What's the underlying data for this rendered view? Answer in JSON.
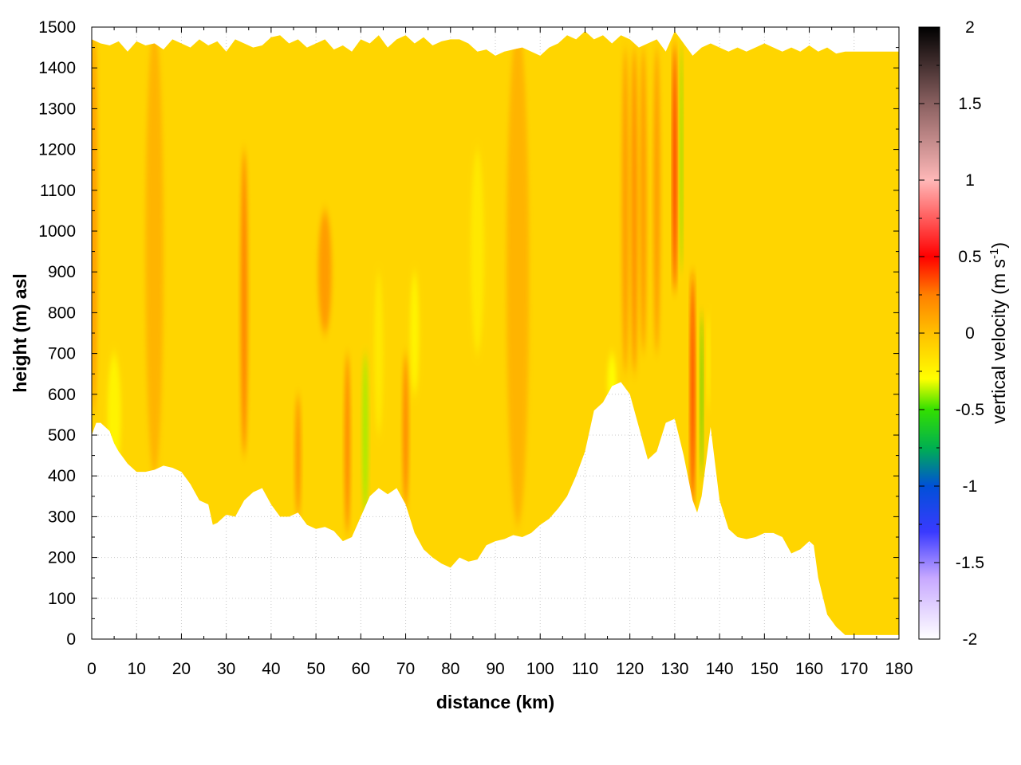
{
  "chart_data": {
    "type": "heatmap",
    "title": "",
    "xlabel": "distance (km)",
    "ylabel": "height (m) asl",
    "colorbar_label": "vertical velocity (m s",
    "colorbar_label_sup": "-1",
    "colorbar_label_end": ")",
    "xlim": [
      0,
      180
    ],
    "ylim": [
      0,
      1500
    ],
    "clim": [
      -2,
      2
    ],
    "grid": true,
    "x_ticks": [
      0,
      10,
      20,
      30,
      40,
      50,
      60,
      70,
      80,
      90,
      100,
      110,
      120,
      130,
      140,
      150,
      160,
      170,
      180
    ],
    "x_tick_labels": [
      "0",
      "10",
      "20",
      "30",
      "40",
      "50",
      "60",
      "70",
      "80",
      "90",
      "100",
      "110",
      "120",
      "130",
      "140",
      "150",
      "160",
      "170",
      "180"
    ],
    "y_ticks": [
      0,
      100,
      200,
      300,
      400,
      500,
      600,
      700,
      800,
      900,
      1000,
      1100,
      1200,
      1300,
      1400,
      1500
    ],
    "y_tick_labels": [
      "0",
      "100",
      "200",
      "300",
      "400",
      "500",
      "600",
      "700",
      "800",
      "900",
      "1000",
      "1100",
      "1200",
      "1300",
      "1400",
      "1500"
    ],
    "colorbar_ticks": [
      2,
      1.5,
      1,
      0.5,
      0,
      -0.5,
      -1,
      -1.5,
      -2
    ],
    "colorbar_tick_labels": [
      "2",
      "1.5",
      "1",
      "0.5",
      "0",
      "-0.5",
      "-1",
      "-1.5",
      "-2"
    ],
    "colormap": [
      {
        "v": -2.0,
        "color": "#ffffff"
      },
      {
        "v": -1.6,
        "color": "#c7a8ff"
      },
      {
        "v": -1.3,
        "color": "#3a3aff"
      },
      {
        "v": -1.0,
        "color": "#0050d8"
      },
      {
        "v": -0.75,
        "color": "#00b050"
      },
      {
        "v": -0.5,
        "color": "#33e000"
      },
      {
        "v": -0.3,
        "color": "#ffff00"
      },
      {
        "v": 0.0,
        "color": "#ffc000"
      },
      {
        "v": 0.25,
        "color": "#ff8000"
      },
      {
        "v": 0.5,
        "color": "#ff0000"
      },
      {
        "v": 1.0,
        "color": "#ffb8b8"
      },
      {
        "v": 1.5,
        "color": "#8a6060"
      },
      {
        "v": 2.0,
        "color": "#000000"
      }
    ],
    "terrain": {
      "x": [
        0,
        1,
        2,
        4,
        5,
        6,
        8,
        10,
        12,
        14,
        16,
        18,
        20,
        22,
        24,
        26,
        27,
        28,
        30,
        32,
        34,
        36,
        38,
        40,
        42,
        44,
        46,
        48,
        50,
        52,
        54,
        56,
        58,
        60,
        62,
        64,
        66,
        68,
        70,
        72,
        74,
        76,
        78,
        80,
        82,
        84,
        86,
        88,
        90,
        92,
        94,
        96,
        98,
        100,
        102,
        104,
        106,
        108,
        110,
        112,
        114,
        116,
        118,
        120,
        122,
        124,
        126,
        128,
        130,
        132,
        134,
        135,
        136,
        138,
        140,
        142,
        144,
        146,
        148,
        150,
        152,
        154,
        156,
        158,
        160,
        161,
        162,
        164,
        166,
        168,
        170,
        172,
        174,
        176,
        178,
        180
      ],
      "y": [
        500,
        530,
        530,
        510,
        480,
        460,
        430,
        410,
        410,
        415,
        425,
        420,
        410,
        380,
        340,
        330,
        280,
        285,
        305,
        300,
        340,
        360,
        370,
        330,
        300,
        300,
        310,
        280,
        270,
        275,
        265,
        240,
        250,
        300,
        350,
        370,
        355,
        370,
        330,
        260,
        220,
        200,
        185,
        175,
        200,
        190,
        195,
        230,
        240,
        245,
        255,
        250,
        260,
        280,
        295,
        320,
        350,
        400,
        460,
        560,
        580,
        620,
        630,
        600,
        520,
        440,
        460,
        530,
        540,
        450,
        340,
        310,
        350,
        520,
        340,
        270,
        250,
        245,
        250,
        260,
        260,
        250,
        210,
        220,
        240,
        230,
        150,
        60,
        30,
        10,
        10,
        10,
        10,
        10,
        10,
        10
      ]
    },
    "top_boundary": {
      "x": [
        0,
        2,
        4,
        6,
        8,
        10,
        12,
        14,
        16,
        18,
        20,
        22,
        24,
        26,
        28,
        30,
        32,
        34,
        36,
        38,
        40,
        42,
        44,
        46,
        48,
        50,
        52,
        54,
        56,
        58,
        60,
        62,
        64,
        66,
        68,
        70,
        72,
        74,
        76,
        78,
        80,
        82,
        84,
        86,
        88,
        90,
        92,
        94,
        96,
        98,
        100,
        102,
        104,
        106,
        108,
        110,
        112,
        114,
        116,
        118,
        120,
        122,
        124,
        126,
        128,
        130,
        132,
        134,
        136,
        138,
        140,
        142,
        144,
        146,
        148,
        150,
        152,
        154,
        156,
        158,
        160,
        162,
        164,
        166,
        168,
        170,
        172,
        174,
        176,
        178,
        180
      ],
      "y": [
        1470,
        1460,
        1455,
        1465,
        1440,
        1465,
        1455,
        1460,
        1445,
        1470,
        1460,
        1450,
        1470,
        1455,
        1465,
        1440,
        1470,
        1460,
        1450,
        1455,
        1475,
        1480,
        1460,
        1470,
        1450,
        1460,
        1470,
        1445,
        1455,
        1440,
        1470,
        1460,
        1480,
        1450,
        1470,
        1480,
        1460,
        1475,
        1455,
        1465,
        1470,
        1470,
        1460,
        1440,
        1445,
        1430,
        1440,
        1445,
        1450,
        1440,
        1430,
        1450,
        1460,
        1480,
        1470,
        1490,
        1470,
        1480,
        1460,
        1480,
        1470,
        1450,
        1460,
        1470,
        1440,
        1490,
        1460,
        1430,
        1450,
        1460,
        1450,
        1440,
        1450,
        1440,
        1450,
        1460,
        1450,
        1440,
        1450,
        1440,
        1455,
        1440,
        1450,
        1435,
        1440,
        1440,
        1440,
        1440,
        1440,
        1440,
        1440
      ]
    },
    "base_value": -0.1,
    "features": [
      {
        "x": 0.5,
        "width": 1.5,
        "y0": 550,
        "y1": 1500,
        "value": 0.15
      },
      {
        "x": 5,
        "width": 3,
        "y0": 400,
        "y1": 700,
        "value": -0.25
      },
      {
        "x": 14,
        "width": 4,
        "y0": 400,
        "y1": 1500,
        "value": 0.05
      },
      {
        "x": 34,
        "width": 1.5,
        "y0": 450,
        "y1": 1200,
        "value": 0.25
      },
      {
        "x": 46,
        "width": 1.2,
        "y0": 300,
        "y1": 600,
        "value": 0.2
      },
      {
        "x": 52,
        "width": 3,
        "y0": 750,
        "y1": 1050,
        "value": 0.15
      },
      {
        "x": 57,
        "width": 1.2,
        "y0": 260,
        "y1": 700,
        "value": 0.25
      },
      {
        "x": 61,
        "width": 1.2,
        "y0": 300,
        "y1": 700,
        "value": -0.4
      },
      {
        "x": 64,
        "width": 2,
        "y0": 500,
        "y1": 900,
        "value": -0.2
      },
      {
        "x": 70,
        "width": 1.2,
        "y0": 320,
        "y1": 700,
        "value": 0.25
      },
      {
        "x": 72,
        "width": 2,
        "y0": 600,
        "y1": 900,
        "value": -0.25
      },
      {
        "x": 86,
        "width": 3,
        "y0": 700,
        "y1": 1200,
        "value": -0.2
      },
      {
        "x": 95,
        "width": 5,
        "y0": 280,
        "y1": 1500,
        "value": 0.05
      },
      {
        "x": 116,
        "width": 2,
        "y0": 560,
        "y1": 700,
        "value": -0.3
      },
      {
        "x": 119,
        "width": 1.5,
        "y0": 650,
        "y1": 1450,
        "value": 0.15
      },
      {
        "x": 121,
        "width": 1.5,
        "y0": 650,
        "y1": 1450,
        "value": 0.2
      },
      {
        "x": 123,
        "width": 1.5,
        "y0": 700,
        "y1": 1450,
        "value": 0.15
      },
      {
        "x": 126,
        "width": 1.5,
        "y0": 700,
        "y1": 1450,
        "value": 0.15
      },
      {
        "x": 130,
        "width": 0.8,
        "y0": 850,
        "y1": 1460,
        "value": 0.5
      },
      {
        "x": 131.5,
        "width": 0.5,
        "y0": 900,
        "y1": 1460,
        "value": -0.45
      },
      {
        "x": 134,
        "width": 0.9,
        "y0": 320,
        "y1": 900,
        "value": 0.45
      },
      {
        "x": 136,
        "width": 0.4,
        "y0": 400,
        "y1": 800,
        "value": -0.55
      },
      {
        "x": 137.5,
        "width": 0.5,
        "y0": 560,
        "y1": 800,
        "value": -0.3
      }
    ]
  }
}
